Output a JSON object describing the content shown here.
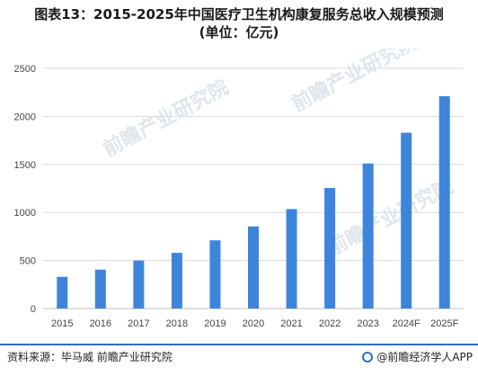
{
  "page": {
    "title_line1": "图表13：2015-2025年中国医疗卫生机构康复服务总收入规模预测",
    "title_line2": "(单位：亿元)"
  },
  "footer": {
    "source": "资料来源：毕马威 前瞻产业研究院",
    "app": "@前瞻经济学人APP"
  },
  "watermarks": [
    "前瞻产业研究院",
    "前瞻产业研究院",
    "前瞻产业研究院"
  ],
  "colors": {
    "bar": "#3d85db",
    "grid": "#d9d9d9",
    "axis": "#bfbfbf",
    "divider": "#2d6fb8"
  },
  "chart_data": {
    "type": "bar",
    "title": "图表13：2015-2025年中国医疗卫生机构康复服务总收入规模预测",
    "subtitle": "(单位：亿元)",
    "categories": [
      "2015",
      "2016",
      "2017",
      "2018",
      "2019",
      "2020",
      "2021",
      "2022",
      "2023",
      "2024F",
      "2025F"
    ],
    "values": [
      330,
      405,
      500,
      580,
      710,
      855,
      1035,
      1255,
      1510,
      1830,
      2210
    ],
    "ylim": [
      0,
      2500
    ],
    "yticks": [
      0,
      500,
      1000,
      1500,
      2000,
      2500
    ],
    "grid": true,
    "legend": "none"
  }
}
